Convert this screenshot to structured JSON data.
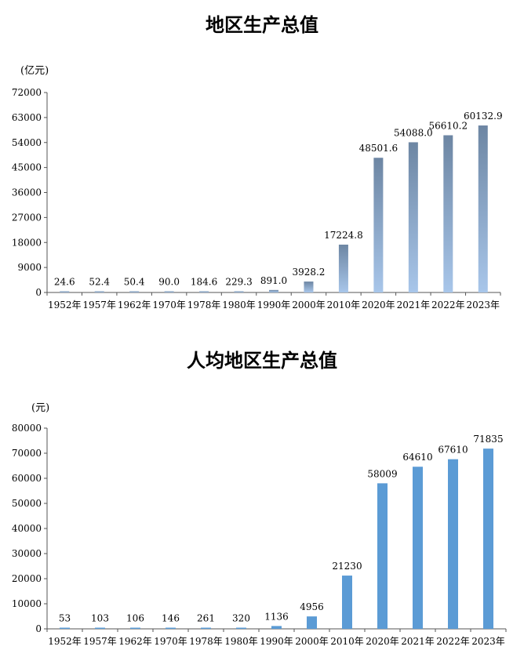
{
  "chart_data": [
    {
      "type": "bar",
      "title": "地区生产总值",
      "ylabel": "(亿元)",
      "ylim": [
        0,
        72000
      ],
      "yticks": [
        0,
        9000,
        18000,
        27000,
        36000,
        45000,
        54000,
        63000,
        72000
      ],
      "categories": [
        "1952年",
        "1957年",
        "1962年",
        "1970年",
        "1978年",
        "1980年",
        "1990年",
        "2000年",
        "2010年",
        "2020年",
        "2021年",
        "2022年",
        "2023年"
      ],
      "values": [
        24.6,
        52.4,
        50.4,
        90.0,
        184.6,
        229.3,
        891.0,
        3928.2,
        17224.8,
        48501.6,
        54088.0,
        56610.2,
        60132.9
      ],
      "value_labels": [
        "24.6",
        "52.4",
        "50.4",
        "90.0",
        "184.6",
        "229.3",
        "891.0",
        "3928.2",
        "17224.8",
        "48501.6",
        "54088.0",
        "56610.2",
        "60132.9"
      ],
      "color": "#6f8fb5",
      "grid": false
    },
    {
      "type": "bar",
      "title": "人均地区生产总值",
      "ylabel": "(元)",
      "ylim": [
        0,
        80000
      ],
      "yticks": [
        0,
        10000,
        20000,
        30000,
        40000,
        50000,
        60000,
        70000,
        80000
      ],
      "categories": [
        "1952年",
        "1957年",
        "1962年",
        "1970年",
        "1978年",
        "1980年",
        "1990年",
        "2000年",
        "2010年",
        "2020年",
        "2021年",
        "2022年",
        "2023年"
      ],
      "values": [
        53,
        103,
        106,
        146,
        261,
        320,
        1136,
        4956,
        21230,
        58009,
        64610,
        67610,
        71835
      ],
      "value_labels": [
        "53",
        "103",
        "106",
        "146",
        "261",
        "320",
        "1136",
        "4956",
        "21230",
        "58009",
        "64610",
        "67610",
        "71835"
      ],
      "color": "#5b9bd5",
      "grid": false
    }
  ]
}
